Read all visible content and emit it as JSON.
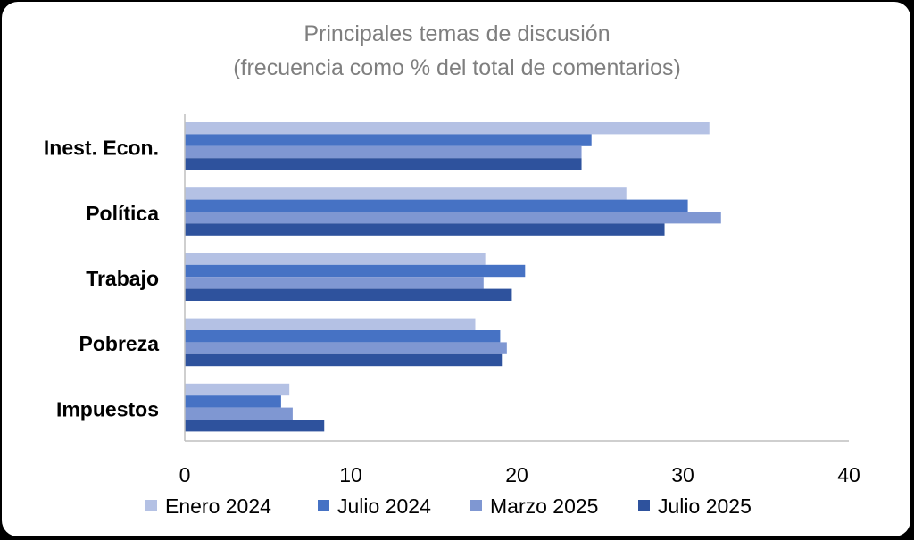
{
  "chart_data": {
    "type": "bar",
    "orientation": "horizontal",
    "title": "Principales temas de discusión",
    "subtitle": "(frecuencia como % del total de comentarios)",
    "xlabel": "",
    "ylabel": "",
    "xlim": [
      0,
      40
    ],
    "xticks": [
      "0",
      "10",
      "20",
      "30",
      "40"
    ],
    "grid": false,
    "legend_position": "bottom",
    "categories": [
      "Inest. Econ.",
      "Política",
      "Trabajo",
      "Pobreza",
      "Impuestos"
    ],
    "series": [
      {
        "name": "Enero 2024",
        "color": "#b4c1e4",
        "values": [
          31.6,
          26.6,
          18.1,
          17.5,
          6.3
        ]
      },
      {
        "name": "Julio 2024",
        "color": "#4672c4",
        "values": [
          24.5,
          30.3,
          20.5,
          19.0,
          5.8
        ]
      },
      {
        "name": "Marzo 2025",
        "color": "#7f97d2",
        "values": [
          23.9,
          32.3,
          18.0,
          19.4,
          6.5
        ]
      },
      {
        "name": "Julio 2025",
        "color": "#2e529d",
        "values": [
          23.9,
          28.9,
          19.7,
          19.1,
          8.4
        ]
      }
    ]
  }
}
